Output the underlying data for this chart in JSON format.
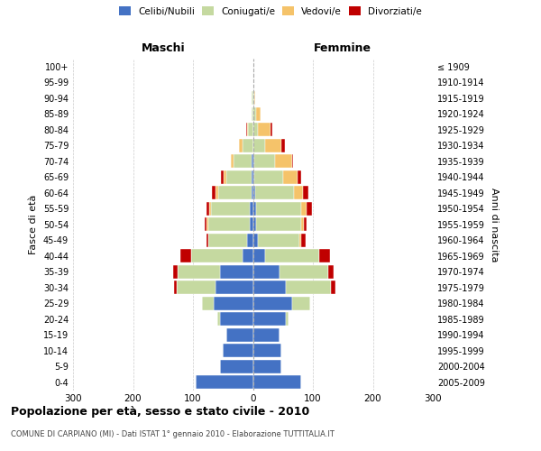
{
  "age_groups": [
    "0-4",
    "5-9",
    "10-14",
    "15-19",
    "20-24",
    "25-29",
    "30-34",
    "35-39",
    "40-44",
    "45-49",
    "50-54",
    "55-59",
    "60-64",
    "65-69",
    "70-74",
    "75-79",
    "80-84",
    "85-89",
    "90-94",
    "95-99",
    "100+"
  ],
  "birth_years": [
    "2005-2009",
    "2000-2004",
    "1995-1999",
    "1990-1994",
    "1985-1989",
    "1980-1984",
    "1975-1979",
    "1970-1974",
    "1965-1969",
    "1960-1964",
    "1955-1959",
    "1950-1954",
    "1945-1949",
    "1940-1944",
    "1935-1939",
    "1930-1934",
    "1925-1929",
    "1920-1924",
    "1915-1919",
    "1910-1914",
    "≤ 1909"
  ],
  "maschi": {
    "celibi": [
      95,
      55,
      50,
      45,
      55,
      65,
      62,
      55,
      18,
      10,
      5,
      5,
      3,
      2,
      2,
      0,
      0,
      0,
      0,
      0,
      0
    ],
    "coniugati": [
      0,
      0,
      0,
      0,
      5,
      20,
      65,
      70,
      85,
      65,
      70,
      65,
      55,
      42,
      30,
      18,
      8,
      2,
      2,
      0,
      0
    ],
    "vedovi": [
      0,
      0,
      0,
      0,
      0,
      0,
      0,
      0,
      0,
      0,
      2,
      3,
      5,
      5,
      5,
      5,
      2,
      0,
      0,
      0,
      0
    ],
    "divorziati": [
      0,
      0,
      0,
      0,
      0,
      0,
      5,
      8,
      18,
      2,
      3,
      5,
      5,
      5,
      0,
      0,
      2,
      0,
      0,
      0,
      0
    ]
  },
  "femmine": {
    "nubili": [
      80,
      48,
      48,
      45,
      55,
      65,
      55,
      45,
      20,
      8,
      5,
      5,
      4,
      2,
      2,
      0,
      0,
      0,
      0,
      0,
      0
    ],
    "coniugate": [
      0,
      0,
      0,
      0,
      5,
      30,
      75,
      80,
      90,
      70,
      75,
      75,
      65,
      48,
      35,
      20,
      8,
      5,
      2,
      0,
      0
    ],
    "vedove": [
      0,
      0,
      0,
      0,
      0,
      0,
      0,
      0,
      0,
      2,
      5,
      10,
      15,
      25,
      28,
      28,
      22,
      8,
      2,
      0,
      0
    ],
    "divorziate": [
      0,
      0,
      0,
      0,
      0,
      0,
      8,
      10,
      18,
      8,
      5,
      8,
      8,
      5,
      2,
      5,
      2,
      0,
      0,
      0,
      0
    ]
  },
  "colors": {
    "celibi": "#4472c4",
    "coniugati": "#c5d9a0",
    "vedovi": "#f5c36a",
    "divorziati": "#c00000"
  },
  "xlim": 300,
  "title": "Popolazione per età, sesso e stato civile - 2010",
  "subtitle": "COMUNE DI CARPIANO (MI) - Dati ISTAT 1° gennaio 2010 - Elaborazione TUTTITALIA.IT",
  "ylabel_left": "Fasce di età",
  "ylabel_right": "Anni di nascita",
  "xlabel_maschi": "Maschi",
  "xlabel_femmine": "Femmine"
}
